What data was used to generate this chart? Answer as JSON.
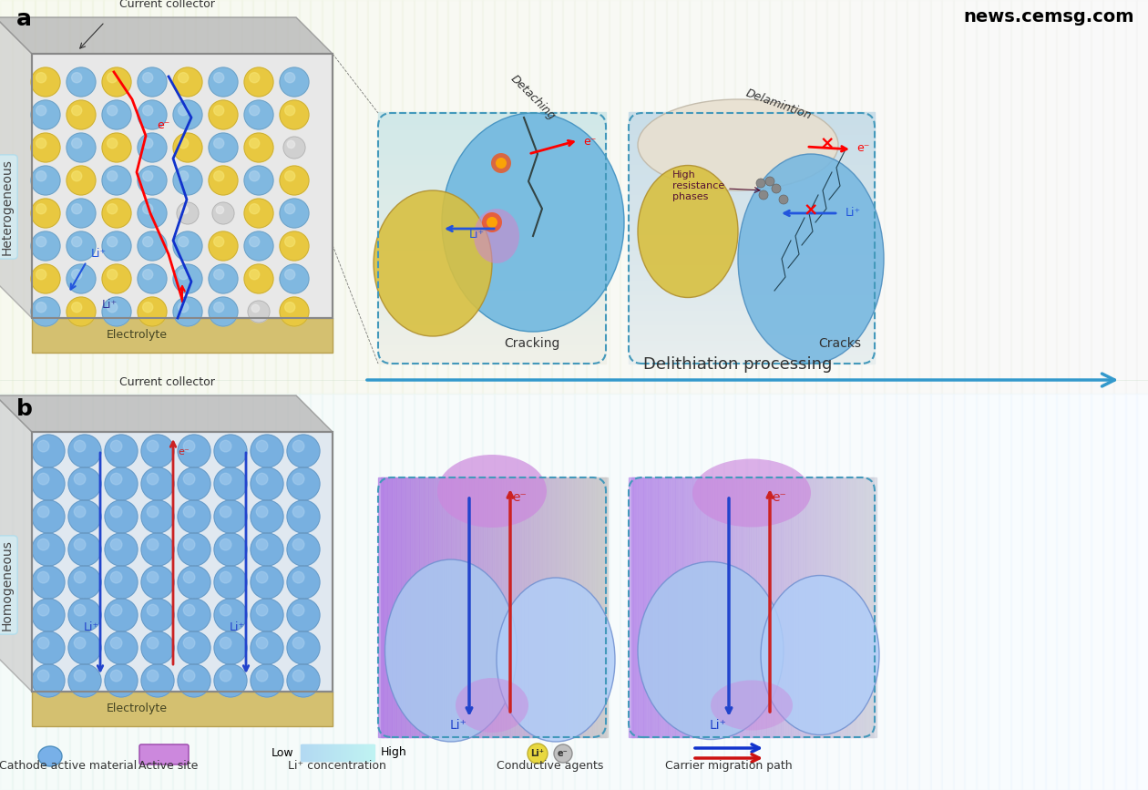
{
  "title_a": "a",
  "title_b": "b",
  "watermark": "news.cemsg.com",
  "label_heterogeneous": "Heterogeneous",
  "label_homogeneous": "Homogeneous",
  "label_current_collector": "Current collector",
  "label_electrolyte": "Electrolyte",
  "label_delithiation": "Delithiation processing",
  "label_detaching": "Detaching",
  "label_cracking": "Cracking",
  "label_delamination": "Delamintion",
  "label_cracks": "Cracks",
  "label_high_resistance": "High\nresistance\nphases",
  "label_li_plus": "Li⁺",
  "label_e_minus": "e⁻",
  "legend_cathode": "Cathode active material",
  "legend_active_site": "Active site",
  "legend_li_conc_low": "Low",
  "legend_li_conc_high": "High",
  "legend_li_conc_label": "Li⁺ concentration",
  "legend_conductive": "Conductive agents",
  "legend_carrier": "Carrier migration path",
  "bg_color": "#ffffff",
  "arrow_blue": "#1a3af5",
  "arrow_red": "#e8150a",
  "cathode_blue": "#7ab8e8",
  "electrolyte_yellow": "#e8d87a",
  "conductive_gray": "#b0b0b0",
  "panel_bg_a_color": "#f5f5e8",
  "panel_bg_b_color": "#e8f5f5"
}
